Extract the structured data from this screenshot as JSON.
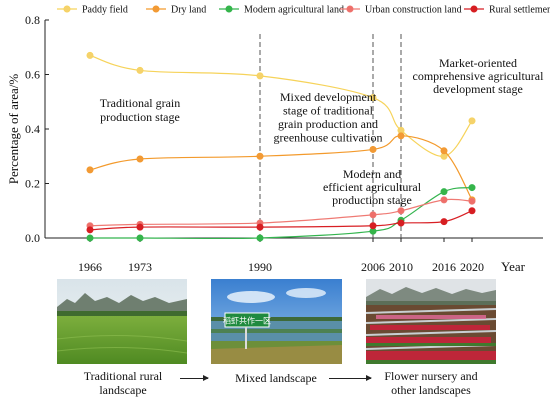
{
  "chart_data": {
    "type": "line",
    "ylabel": "Percentage of area/%",
    "xlabel": "Year",
    "x": [
      1966,
      1973,
      1990,
      2006,
      2010,
      2016,
      2020
    ],
    "ylim": [
      0,
      0.8
    ],
    "yticks": [
      "0.0",
      "0.2",
      "0.4",
      "0.6",
      "0.8"
    ],
    "legend_position": "top",
    "series": [
      {
        "name": "Paddy field",
        "color": "#f6d35a",
        "marker": "#f5d26c",
        "values": [
          0.67,
          0.615,
          0.595,
          0.515,
          0.395,
          0.3,
          0.43
        ]
      },
      {
        "name": "Dry land",
        "color": "#f39a2c",
        "marker": "#f29a36",
        "values": [
          0.25,
          0.29,
          0.3,
          0.325,
          0.375,
          0.32,
          0.14
        ]
      },
      {
        "name": "Modern agricultural land",
        "color": "#33b44e",
        "marker": "#35b54a",
        "values": [
          0.0,
          0.0,
          0.0,
          0.025,
          0.065,
          0.17,
          0.185
        ]
      },
      {
        "name": "Urban construction land",
        "color": "#ef7a74",
        "marker": "#ee6f6a",
        "values": [
          0.045,
          0.05,
          0.055,
          0.085,
          0.1,
          0.14,
          0.135
        ]
      },
      {
        "name": "Rural settlements",
        "color": "#d81f24",
        "marker": "#d61e22",
        "values": [
          0.03,
          0.04,
          0.04,
          0.045,
          0.055,
          0.06,
          0.1
        ]
      }
    ],
    "dividers": [
      1990,
      2006,
      2010
    ],
    "annotations": [
      {
        "text": [
          "Traditional grain",
          "production stage"
        ]
      },
      {
        "text": [
          "Mixed development",
          "stage of traditional",
          "grain production and",
          "greenhouse cultivation"
        ]
      },
      {
        "text": [
          "Modern and",
          "efficient agricultural",
          "production stage"
        ]
      },
      {
        "text": [
          "Market-oriented",
          "comprehensive agricultural",
          "development stage"
        ]
      }
    ]
  },
  "photos": {
    "captions": [
      [
        "Traditional rural",
        "landscape"
      ],
      [
        "Mixed landscape"
      ],
      [
        "Flower nursery and",
        "other landscapes"
      ]
    ],
    "sign_text": "稻虾共作一区"
  }
}
